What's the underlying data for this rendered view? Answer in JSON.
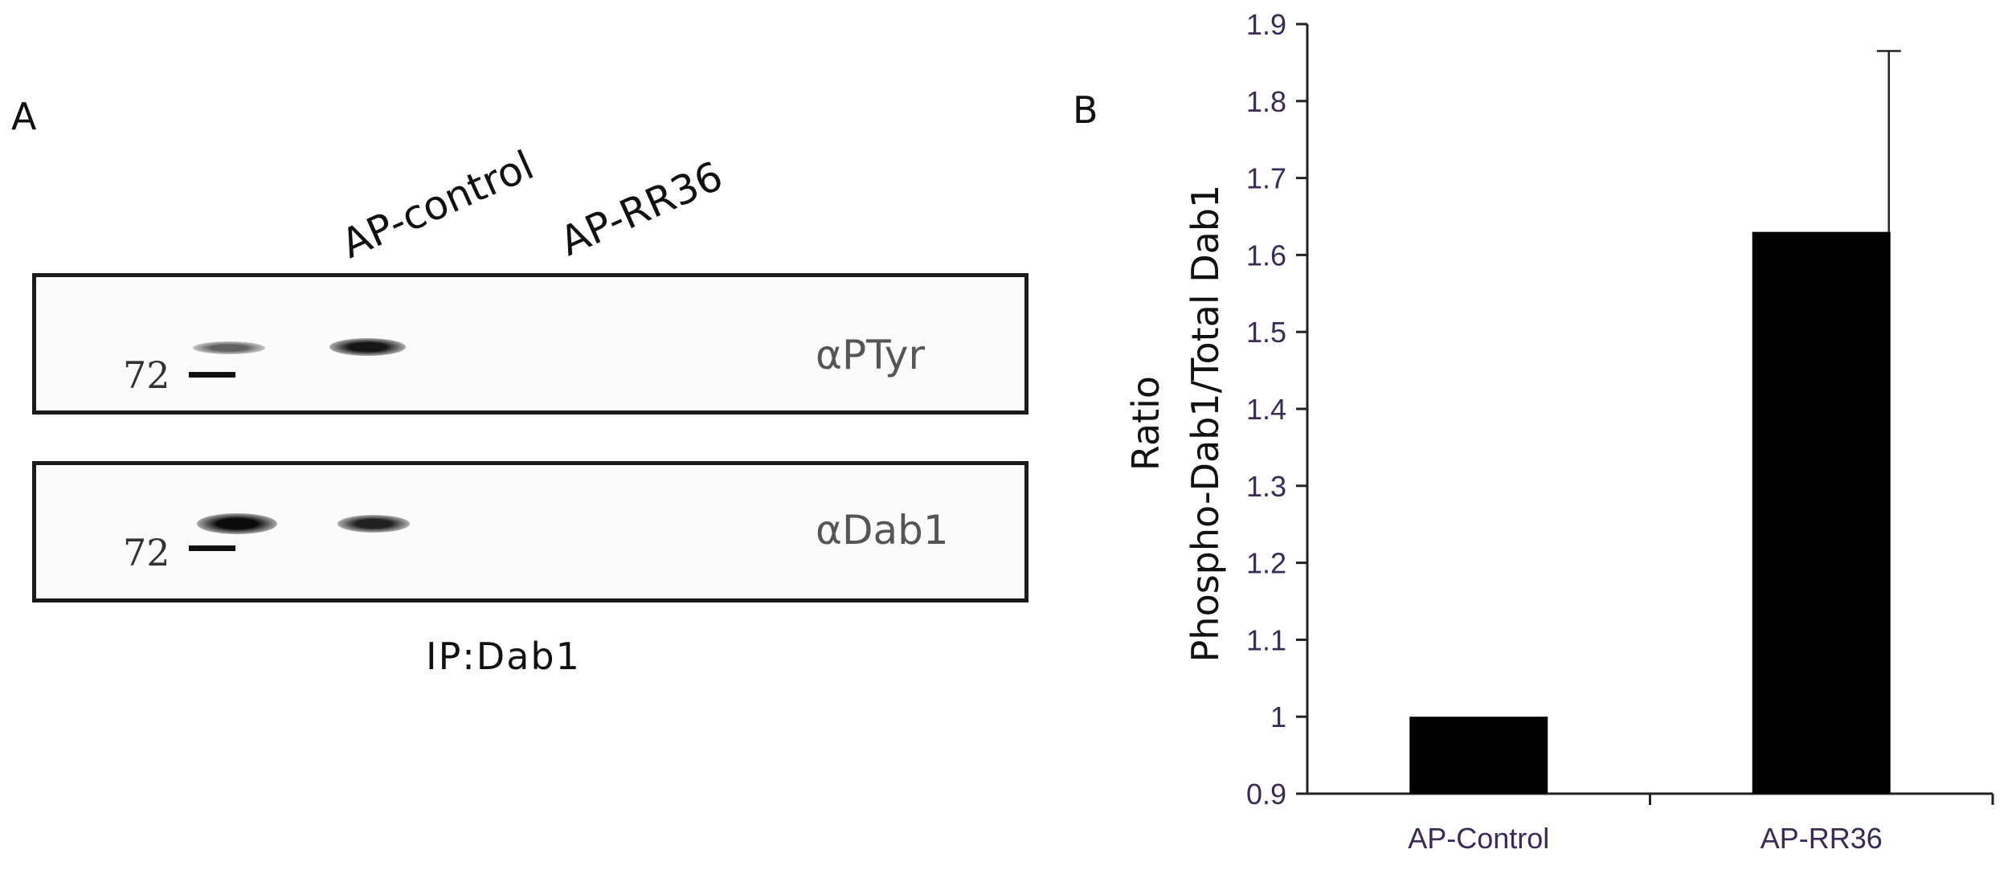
{
  "panel_a": {
    "letter": "A",
    "lanes": [
      "AP-control",
      "AP-RR36"
    ],
    "blots": [
      {
        "antibody": "αPTyr",
        "marker": "72",
        "band_intensity": [
          0.55,
          0.9
        ]
      },
      {
        "antibody": "αDab1",
        "marker": "72",
        "band_intensity": [
          0.95,
          0.85
        ]
      }
    ],
    "caption": "IP:Dab1"
  },
  "panel_b": {
    "letter": "B",
    "ylabel_line1": "Ratio",
    "ylabel_line2": "Phospho-Dab1/Total Dab1"
  },
  "chart_data": {
    "type": "bar",
    "categories": [
      "AP-Control",
      "AP-RR36"
    ],
    "values": [
      1.0,
      1.63
    ],
    "error_upper": [
      0,
      0.235
    ],
    "ylim": [
      0.9,
      1.9
    ],
    "yticks": [
      "0.9",
      "1",
      "1.1",
      "1.2",
      "1.3",
      "1.4",
      "1.5",
      "1.6",
      "1.7",
      "1.8",
      "1.9"
    ],
    "bar_color": "#000000",
    "tick_label_color": "#3a2a55",
    "category_label_color": "#3a2a55",
    "grid": false
  }
}
